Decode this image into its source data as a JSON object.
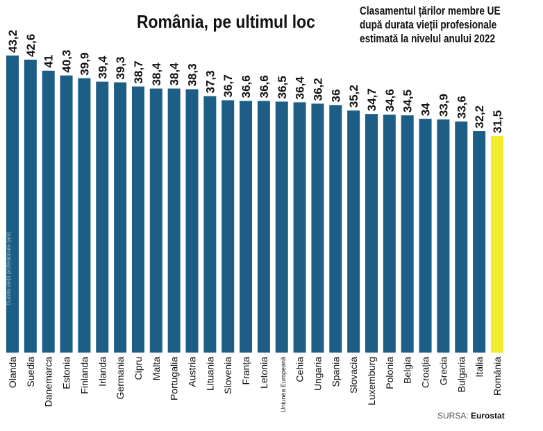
{
  "title": "România, pe ultimul loc",
  "subtitle": [
    "Clasamentul țărilor membre UE",
    "după durata vieții profesionale",
    "estimată la nivelul anului 2022"
  ],
  "source": {
    "label": "SURSA:",
    "value": "Eurostat"
  },
  "colors": {
    "bar": "#1d5e86",
    "highlight": "#f2ec2c"
  },
  "chart_data": {
    "type": "bar",
    "title": "România, pe ultimul loc",
    "ylabel": "Durata vieții profesionale (ani)",
    "categories": [
      "Olanda",
      "Suedia",
      "Danemarca",
      "Estonia",
      "Finlanda",
      "Irlanda",
      "Germania",
      "Cipru",
      "Malta",
      "Portugalia",
      "Austria",
      "Lituania",
      "Slovenia",
      "Franța",
      "Letonia",
      "Uniunea Europeană",
      "Cehia",
      "Ungaria",
      "Spania",
      "Slovacia",
      "Luxemburg",
      "Polonia",
      "Belgia",
      "Croația",
      "Grecia",
      "Bulgaria",
      "Italia",
      "România"
    ],
    "values": [
      43.2,
      42.6,
      41,
      40.3,
      39.9,
      39.4,
      39.3,
      38.7,
      38.4,
      38.4,
      38.3,
      37.3,
      36.7,
      36.6,
      36.6,
      36.5,
      36.4,
      36.2,
      36,
      35.2,
      34.7,
      34.6,
      34.5,
      34,
      33.9,
      33.6,
      32.2,
      31.5
    ],
    "value_labels": [
      "43,2",
      "42,6",
      "41",
      "40,3",
      "39,9",
      "39,4",
      "39,3",
      "38,7",
      "38,4",
      "38,4",
      "38,3",
      "37,3",
      "36,7",
      "36,6",
      "36,6",
      "36,5",
      "36,4",
      "36,2",
      "36",
      "35,2",
      "34,7",
      "34,6",
      "34,5",
      "34",
      "33,9",
      "33,6",
      "32,2",
      "31,5"
    ],
    "highlight": "România",
    "grid": false
  }
}
